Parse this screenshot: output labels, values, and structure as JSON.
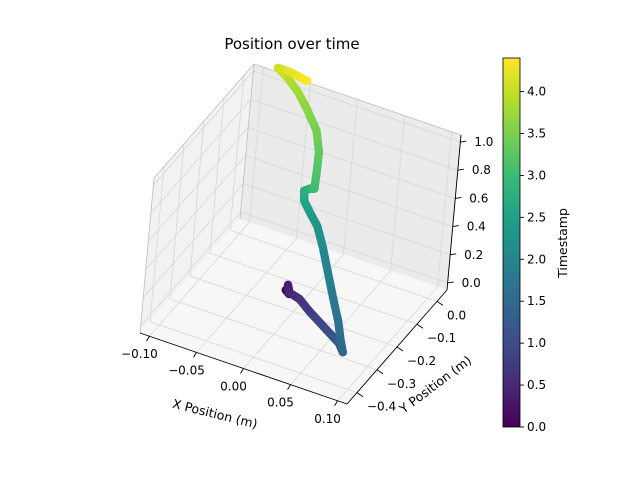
{
  "chart_data": {
    "type": "scatter",
    "projection": "3d",
    "title": "Position over time",
    "xlabel": "X Position (m)",
    "ylabel": "Y Position (m)",
    "zlabel": "",
    "xlim": [
      -0.11,
      0.11
    ],
    "ylim": [
      -0.45,
      0.05
    ],
    "zlim": [
      -0.05,
      1.05
    ],
    "xticks": [
      "−0.10",
      "−0.05",
      "0.00",
      "0.05",
      "0.10"
    ],
    "yticks": [
      "−0.4",
      "−0.3",
      "−0.2",
      "−0.1",
      "0.0"
    ],
    "zticks": [
      "0.0",
      "0.2",
      "0.4",
      "0.6",
      "0.8",
      "1.0"
    ],
    "grid": true,
    "colorbar": {
      "label": "Timestamp",
      "colormap": "viridis",
      "range": [
        0,
        4.4
      ],
      "ticks": [
        "0.0",
        "0.5",
        "1.0",
        "1.5",
        "2.0",
        "2.5",
        "3.0",
        "3.5",
        "4.0"
      ]
    },
    "trajectory": {
      "t": [
        0.0,
        0.15,
        0.3,
        0.45,
        0.6,
        0.75,
        0.9,
        1.05,
        1.2,
        1.35,
        1.5,
        1.65,
        1.8,
        1.95,
        2.1,
        2.25,
        2.4,
        2.55,
        2.7,
        2.85,
        3.0,
        3.15,
        3.3,
        3.45,
        3.6,
        3.75,
        3.9,
        4.05,
        4.2,
        4.4
      ],
      "x": [
        -0.01,
        -0.006,
        -0.01,
        -0.006,
        0.005,
        0.02,
        0.035,
        0.05,
        0.065,
        0.075,
        0.07,
        0.06,
        0.045,
        0.03,
        0.015,
        0.0,
        -0.015,
        -0.025,
        -0.028,
        -0.02,
        -0.012,
        -0.015,
        -0.02,
        -0.03,
        -0.045,
        -0.06,
        -0.075,
        -0.085,
        -0.07,
        -0.05
      ],
      "y": [
        -0.2,
        -0.2,
        -0.19,
        -0.2,
        -0.2,
        -0.22,
        -0.24,
        -0.26,
        -0.28,
        -0.31,
        -0.3,
        -0.27,
        -0.23,
        -0.19,
        -0.15,
        -0.11,
        -0.08,
        -0.06,
        -0.05,
        -0.06,
        -0.08,
        -0.06,
        -0.03,
        0.0,
        0.02,
        0.04,
        0.05,
        0.05,
        0.04,
        0.03
      ],
      "z": [
        0.08,
        0.06,
        0.1,
        0.07,
        0.05,
        0.03,
        0.02,
        0.01,
        0.0,
        0.01,
        0.06,
        0.13,
        0.2,
        0.28,
        0.36,
        0.41,
        0.43,
        0.45,
        0.5,
        0.55,
        0.6,
        0.68,
        0.76,
        0.84,
        0.92,
        0.98,
        1.04,
        1.08,
        1.1,
        1.1
      ]
    }
  }
}
